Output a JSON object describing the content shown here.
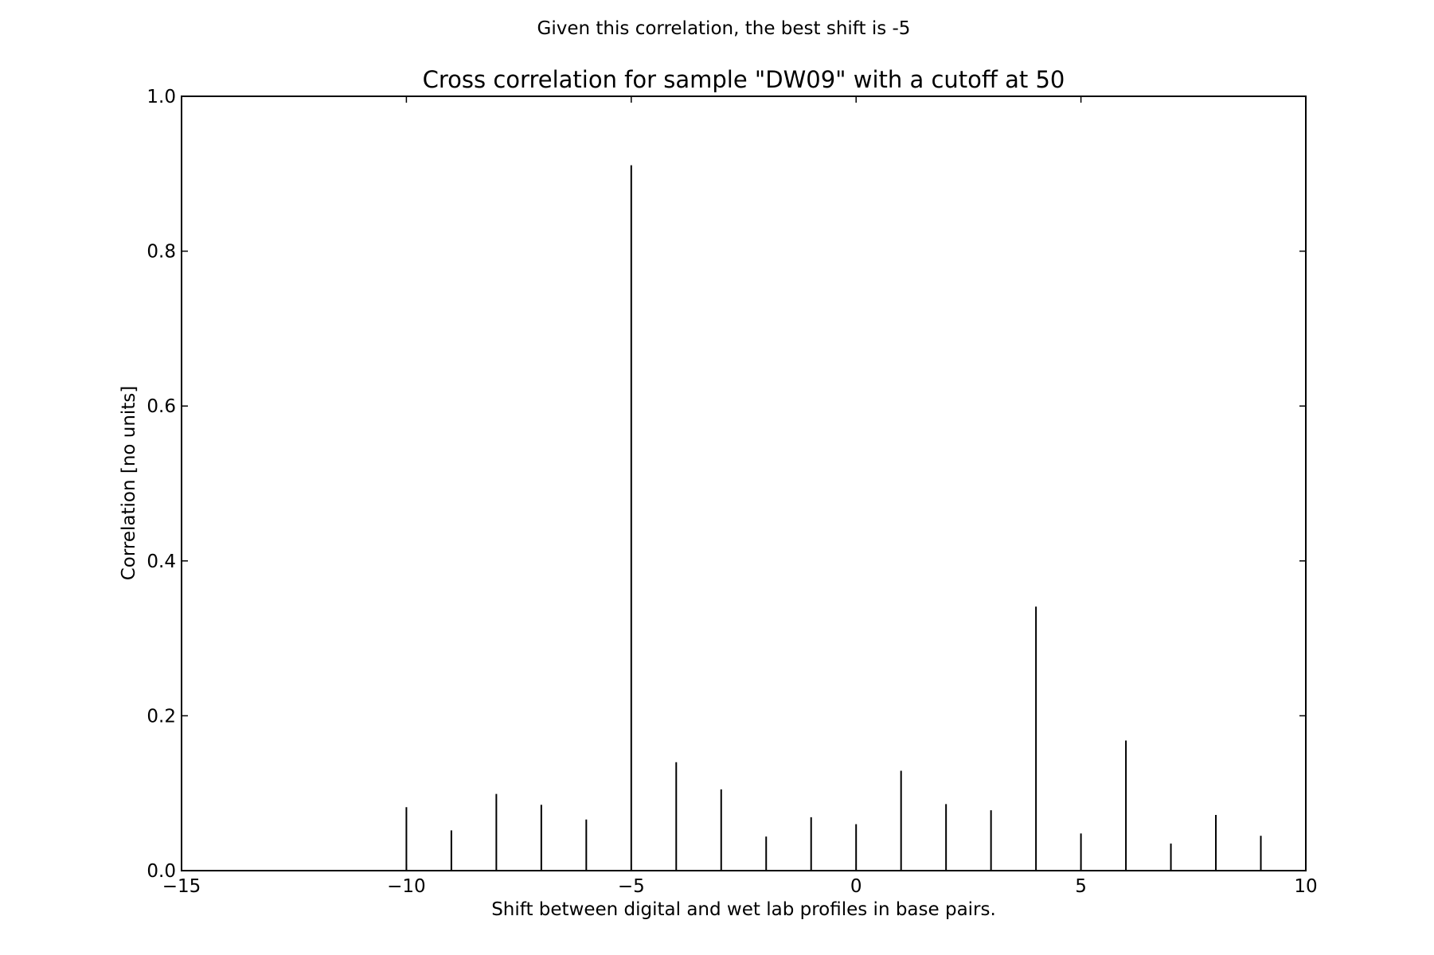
{
  "figure": {
    "suptitle": "Given this correlation, the best shift is -5"
  },
  "chart_data": {
    "type": "stem",
    "title": "Cross correlation for sample \"DW09\" with a cutoff at 50",
    "xlabel": "Shift between digital and wet lab profiles in base pairs.",
    "ylabel": "Correlation [no units]",
    "xlim": [
      -15,
      10
    ],
    "ylim": [
      0,
      1.0
    ],
    "xticks": [
      -15,
      -10,
      -5,
      0,
      5,
      10
    ],
    "xtick_labels": [
      "−15",
      "−10",
      "−5",
      "0",
      "5",
      "10"
    ],
    "yticks": [
      0,
      0.2,
      0.4,
      0.6,
      0.8,
      1.0
    ],
    "ytick_labels": [
      "0.0",
      "0.2",
      "0.4",
      "0.6",
      "0.8",
      "1.0"
    ],
    "grid": false,
    "line_color": "#000000",
    "x": [
      -10,
      -9,
      -8,
      -7,
      -6,
      -5,
      -4,
      -3,
      -2,
      -1,
      0,
      1,
      2,
      3,
      4,
      5,
      6,
      7,
      8,
      9
    ],
    "values": [
      0.082,
      0.052,
      0.099,
      0.085,
      0.066,
      0.911,
      0.14,
      0.105,
      0.044,
      0.069,
      0.06,
      0.129,
      0.086,
      0.078,
      0.341,
      0.048,
      0.168,
      0.035,
      0.072,
      0.045
    ]
  }
}
